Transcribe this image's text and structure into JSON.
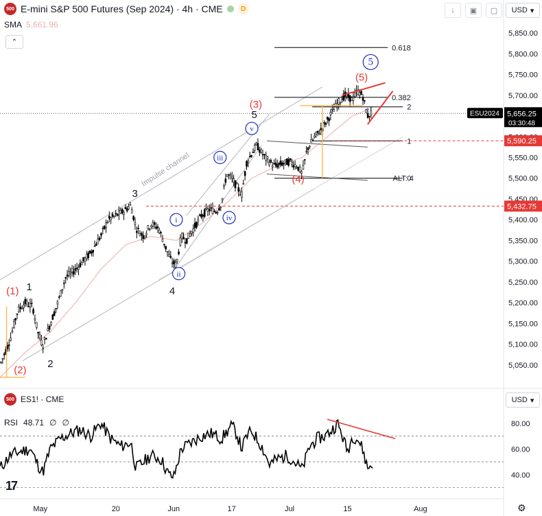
{
  "header": {
    "symbol_badge": "500",
    "title": "E-mini S&P 500 Futures (Sep 2024) · 4h · CME",
    "d_badge": "D",
    "sma_label": "SMA",
    "sma_value": "5,661.96",
    "currency": "USD"
  },
  "pane2": {
    "symbol_badge": "500",
    "title": "ES1! · CME",
    "currency": "USD",
    "rsi_label": "RSI",
    "rsi_value": "48.71",
    "rsi_extra1": "∅",
    "rsi_extra2": "∅"
  },
  "colors": {
    "candle": "#000000",
    "sma": "#f0b8b8",
    "red_accent": "#e53935",
    "blue_accent": "#1a2bc4",
    "channel": "#b2b5be",
    "fib_line": "#000000",
    "orange": "#ffb74d"
  },
  "chart_data": [
    {
      "type": "candlestick",
      "y_axis": {
        "min": 5000,
        "max": 5880,
        "ticks": [
          5050,
          5100,
          5150,
          5200,
          5250,
          5300,
          5350,
          5400,
          5450,
          5500,
          5550,
          5600,
          5650,
          5700,
          5750,
          5800,
          5850
        ],
        "tick_labels": [
          "5,050.00",
          "5,100.00",
          "5,150.00",
          "5,200.00",
          "5,250.00",
          "5,300.00",
          "5,350.00",
          "5,400.00",
          "5,450.00",
          "5,500.00",
          "5,550.00",
          "5,600.00",
          "5,650.00",
          "5,700.00",
          "5,750.00",
          "5,800.00",
          "5,850.00"
        ]
      },
      "x_axis": {
        "labels": [
          "May",
          "20",
          "Jun",
          "17",
          "Jul",
          "15",
          "Aug"
        ],
        "label_positions": [
          0.08,
          0.23,
          0.345,
          0.46,
          0.575,
          0.69,
          0.835
        ]
      },
      "price_path": [
        [
          0.0,
          5050
        ],
        [
          0.02,
          5110
        ],
        [
          0.035,
          5180
        ],
        [
          0.05,
          5200
        ],
        [
          0.065,
          5190
        ],
        [
          0.075,
          5130
        ],
        [
          0.085,
          5095
        ],
        [
          0.1,
          5150
        ],
        [
          0.115,
          5200
        ],
        [
          0.13,
          5260
        ],
        [
          0.15,
          5280
        ],
        [
          0.165,
          5300
        ],
        [
          0.18,
          5320
        ],
        [
          0.2,
          5360
        ],
        [
          0.215,
          5400
        ],
        [
          0.23,
          5410
        ],
        [
          0.245,
          5420
        ],
        [
          0.26,
          5435
        ],
        [
          0.27,
          5380
        ],
        [
          0.285,
          5360
        ],
        [
          0.3,
          5390
        ],
        [
          0.315,
          5380
        ],
        [
          0.33,
          5330
        ],
        [
          0.34,
          5300
        ],
        [
          0.35,
          5290
        ],
        [
          0.36,
          5360
        ],
        [
          0.37,
          5350
        ],
        [
          0.385,
          5380
        ],
        [
          0.4,
          5410
        ],
        [
          0.415,
          5425
        ],
        [
          0.43,
          5420
        ],
        [
          0.44,
          5440
        ],
        [
          0.45,
          5510
        ],
        [
          0.46,
          5500
        ],
        [
          0.47,
          5480
        ],
        [
          0.48,
          5460
        ],
        [
          0.49,
          5540
        ],
        [
          0.5,
          5560
        ],
        [
          0.51,
          5580
        ],
        [
          0.52,
          5560
        ],
        [
          0.53,
          5545
        ],
        [
          0.545,
          5530
        ],
        [
          0.56,
          5535
        ],
        [
          0.575,
          5540
        ],
        [
          0.59,
          5530
        ],
        [
          0.6,
          5510
        ],
        [
          0.61,
          5570
        ],
        [
          0.625,
          5600
        ],
        [
          0.64,
          5620
        ],
        [
          0.655,
          5650
        ],
        [
          0.67,
          5680
        ],
        [
          0.685,
          5700
        ],
        [
          0.7,
          5690
        ],
        [
          0.71,
          5710
        ],
        [
          0.72,
          5700
        ],
        [
          0.73,
          5650
        ],
        [
          0.74,
          5660
        ]
      ],
      "sma_path": [
        [
          0.0,
          5020
        ],
        [
          0.05,
          5080
        ],
        [
          0.1,
          5130
        ],
        [
          0.15,
          5200
        ],
        [
          0.2,
          5280
        ],
        [
          0.25,
          5340
        ],
        [
          0.3,
          5360
        ],
        [
          0.35,
          5350
        ],
        [
          0.4,
          5390
        ],
        [
          0.45,
          5440
        ],
        [
          0.5,
          5500
        ],
        [
          0.55,
          5530
        ],
        [
          0.6,
          5550
        ],
        [
          0.65,
          5600
        ],
        [
          0.7,
          5650
        ],
        [
          0.74,
          5670
        ]
      ],
      "price_tags": [
        {
          "label": "ESU2024",
          "value": 5656.25,
          "text": "5,656.25",
          "sub": "03:30:48",
          "color": "#000000"
        },
        {
          "value": 5590.25,
          "text": "5,590.25",
          "color": "#e53935"
        },
        {
          "value": 5432.75,
          "text": "5,432.75",
          "color": "#e53935"
        }
      ],
      "fib_levels": [
        {
          "label": "0.618",
          "value": 5815
        },
        {
          "label": "0.382",
          "value": 5695
        },
        {
          "label": "2",
          "value": 5672
        },
        {
          "label": "1",
          "value": 5590
        },
        {
          "label": "0",
          "value": 5500
        }
      ],
      "alt_label": "ALT: 4",
      "wave_labels": [
        {
          "text": "(1)",
          "x": 0.025,
          "y": 5220,
          "style": "red"
        },
        {
          "text": "1",
          "x": 0.058,
          "y": 5230,
          "style": "black"
        },
        {
          "text": "(2)",
          "x": 0.04,
          "y": 5030,
          "style": "red"
        },
        {
          "text": "2",
          "x": 0.1,
          "y": 5045,
          "style": "black"
        },
        {
          "text": "3",
          "x": 0.268,
          "y": 5455,
          "style": "black"
        },
        {
          "text": "i",
          "x": 0.35,
          "y": 5400,
          "style": "blue-circle"
        },
        {
          "text": "ii",
          "x": 0.355,
          "y": 5270,
          "style": "blue-circle"
        },
        {
          "text": "4",
          "x": 0.342,
          "y": 5220,
          "style": "black"
        },
        {
          "text": "iii",
          "x": 0.437,
          "y": 5550,
          "style": "blue-circle"
        },
        {
          "text": "iv",
          "x": 0.455,
          "y": 5405,
          "style": "blue-circle"
        },
        {
          "text": "v",
          "x": 0.5,
          "y": 5620,
          "style": "blue-circle"
        },
        {
          "text": "5",
          "x": 0.505,
          "y": 5645,
          "style": "black"
        },
        {
          "text": "(3)",
          "x": 0.508,
          "y": 5670,
          "style": "red"
        },
        {
          "text": "(4)",
          "x": 0.592,
          "y": 5490,
          "style": "red"
        },
        {
          "text": "(5)",
          "x": 0.718,
          "y": 5735,
          "style": "red"
        },
        {
          "text": "5",
          "x": 0.736,
          "y": 5780,
          "style": "blue-circle-big"
        }
      ],
      "channel_label": "Impulse channel"
    },
    {
      "type": "line",
      "name": "RSI",
      "y_axis": {
        "min": 25,
        "max": 90,
        "ticks": [
          40,
          60,
          80
        ],
        "tick_labels": [
          "40.00",
          "60.00",
          "80.00"
        ]
      },
      "bands": [
        30,
        50,
        70
      ],
      "rsi_path": [
        [
          0.0,
          45
        ],
        [
          0.02,
          55
        ],
        [
          0.04,
          58
        ],
        [
          0.06,
          60
        ],
        [
          0.075,
          48
        ],
        [
          0.085,
          42
        ],
        [
          0.1,
          60
        ],
        [
          0.12,
          68
        ],
        [
          0.14,
          72
        ],
        [
          0.16,
          75
        ],
        [
          0.18,
          70
        ],
        [
          0.2,
          80
        ],
        [
          0.22,
          68
        ],
        [
          0.24,
          62
        ],
        [
          0.26,
          65
        ],
        [
          0.27,
          45
        ],
        [
          0.285,
          50
        ],
        [
          0.3,
          55
        ],
        [
          0.32,
          52
        ],
        [
          0.335,
          40
        ],
        [
          0.345,
          38
        ],
        [
          0.36,
          60
        ],
        [
          0.38,
          65
        ],
        [
          0.4,
          70
        ],
        [
          0.42,
          72
        ],
        [
          0.44,
          68
        ],
        [
          0.46,
          78
        ],
        [
          0.47,
          72
        ],
        [
          0.48,
          60
        ],
        [
          0.49,
          70
        ],
        [
          0.5,
          74
        ],
        [
          0.51,
          68
        ],
        [
          0.52,
          62
        ],
        [
          0.535,
          48
        ],
        [
          0.55,
          52
        ],
        [
          0.57,
          55
        ],
        [
          0.585,
          50
        ],
        [
          0.6,
          44
        ],
        [
          0.615,
          62
        ],
        [
          0.63,
          68
        ],
        [
          0.645,
          70
        ],
        [
          0.66,
          75
        ],
        [
          0.67,
          80
        ],
        [
          0.68,
          70
        ],
        [
          0.69,
          58
        ],
        [
          0.7,
          70
        ],
        [
          0.71,
          68
        ],
        [
          0.72,
          60
        ],
        [
          0.73,
          45
        ],
        [
          0.74,
          49
        ]
      ]
    }
  ]
}
